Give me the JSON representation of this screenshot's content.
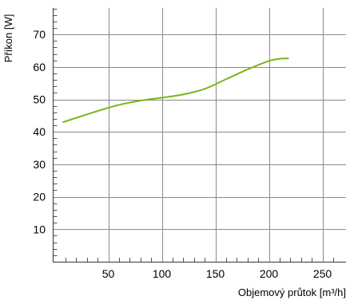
{
  "chart_data": {
    "type": "line",
    "xlabel": "Objemový průtok [m³/h]",
    "ylabel": "Příkon [W]",
    "xlim": [
      0,
      260
    ],
    "ylim": [
      0,
      80
    ],
    "x_ticks": [
      50,
      100,
      150,
      200,
      250
    ],
    "y_ticks": [
      10,
      20,
      30,
      40,
      50,
      60,
      70
    ],
    "grid": true,
    "series": [
      {
        "color": "#7cb518",
        "x": [
          8,
          20,
          40,
          60,
          80,
          100,
          120,
          140,
          160,
          180,
          200,
          210,
          218
        ],
        "values": [
          43,
          44.3,
          46.4,
          48.3,
          49.6,
          50.5,
          51.5,
          53.2,
          56.2,
          59.2,
          61.8,
          62.5,
          62.6
        ]
      }
    ]
  }
}
